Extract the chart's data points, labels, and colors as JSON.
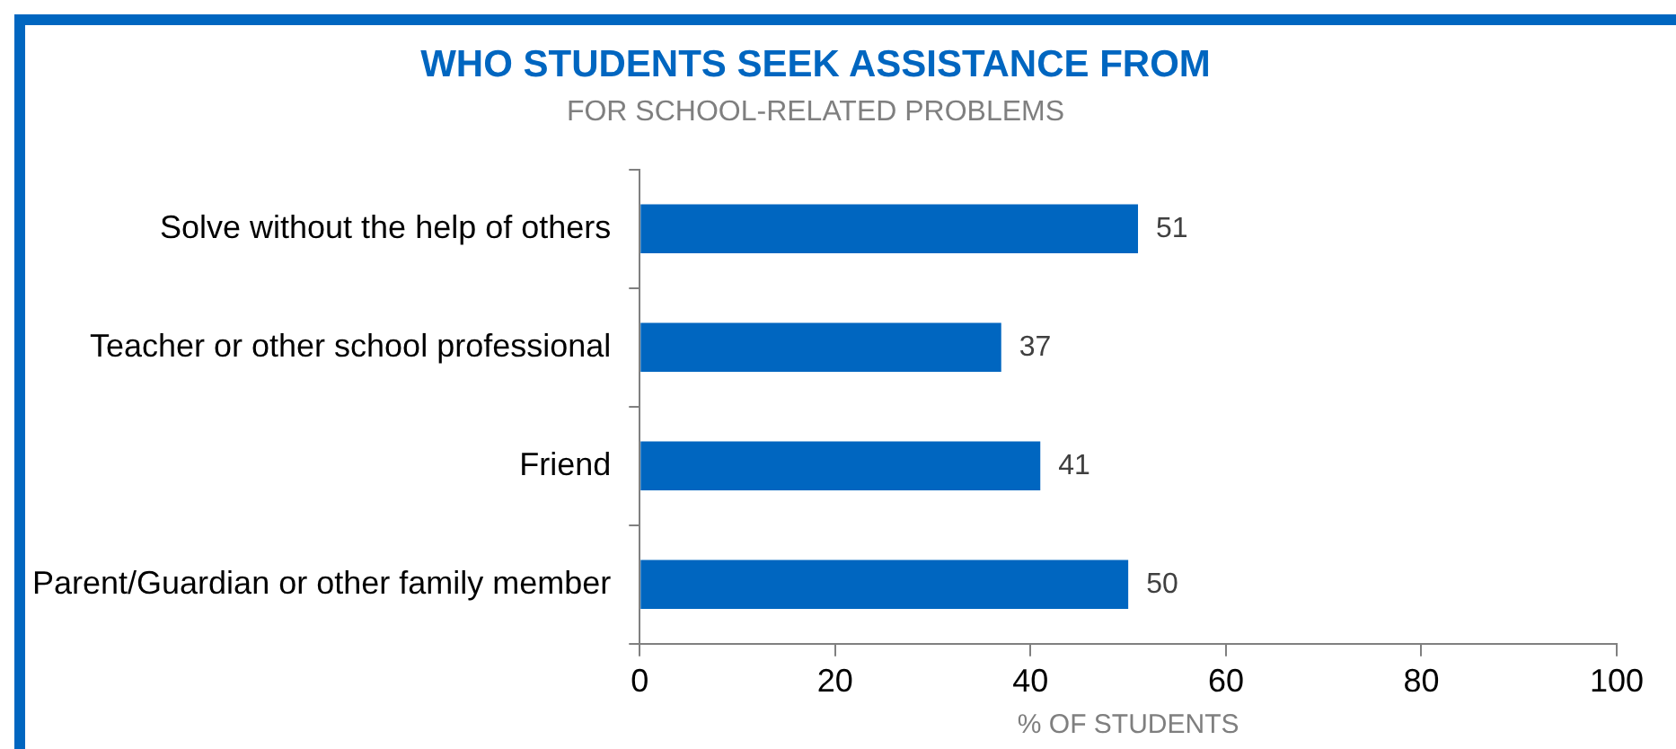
{
  "chart_data": {
    "type": "bar",
    "orientation": "horizontal",
    "title": "WHO STUDENTS SEEK ASSISTANCE FROM",
    "subtitle": "FOR SCHOOL-RELATED PROBLEMS",
    "xlabel": "% OF STUDENTS",
    "categories": [
      "Solve without the help of others",
      "Teacher or other school professional",
      "Friend",
      "Parent/Guardian or other family member"
    ],
    "values": [
      51,
      37,
      41,
      50
    ],
    "color": "#0066c0",
    "data_labels": true,
    "xlim": [
      0,
      100
    ],
    "xticks": [
      0,
      20,
      40,
      60,
      80,
      100
    ],
    "grid": false,
    "legend": false
  }
}
